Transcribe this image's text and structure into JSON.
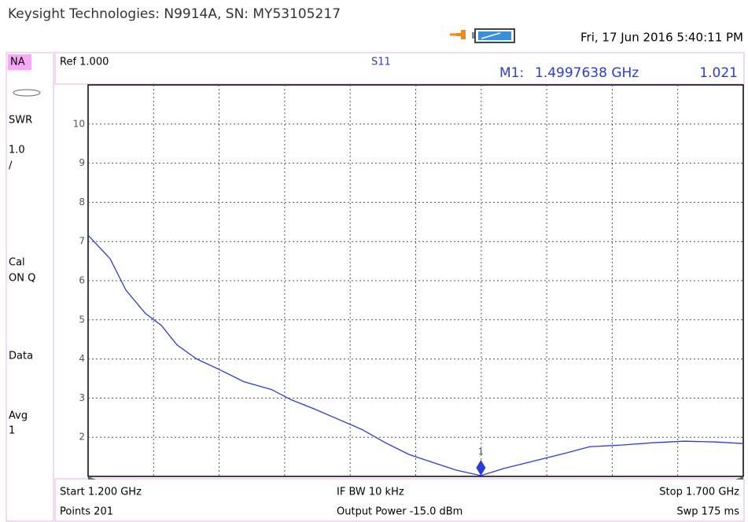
{
  "header": {
    "title": "Keysight Technologies: N9914A, SN: MY53105217",
    "datetime": "Fri, 17 Jun 2016 5:40:11 PM",
    "mode": "NA",
    "reference": "Ref 1.000",
    "measurement": "S11"
  },
  "side_panel": {
    "format": "SWR",
    "scale": "1.0",
    "scale_unit": "/",
    "cal_label": "Cal",
    "cal_state": "ON Q",
    "data": "Data",
    "avg_label": "Avg",
    "avg_value": "1"
  },
  "footer": {
    "start": "Start 1.200 GHz",
    "if_bw": "IF BW 10 kHz",
    "stop": "Stop 1.700 GHz",
    "points": "Points 201",
    "output_power": "Output Power -15.0 dBm",
    "sweep": "Swp 175 ms"
  },
  "chart_data": {
    "type": "line",
    "x": [
      1.2,
      1.2168,
      1.2288,
      1.2438,
      1.2558,
      1.2678,
      1.2828,
      1.3008,
      1.3188,
      1.3399,
      1.3549,
      1.3729,
      1.3909,
      1.4089,
      1.4269,
      1.4449,
      1.4629,
      1.4809,
      1.4998,
      1.517,
      1.5409,
      1.565,
      1.583,
      1.6069,
      1.6309,
      1.655,
      1.6789,
      1.7
    ],
    "series": [
      {
        "color": "#2a3cd6",
        "values": [
          7.16,
          6.56,
          5.76,
          5.16,
          4.86,
          4.36,
          4.0,
          3.72,
          3.42,
          3.22,
          2.96,
          2.72,
          2.46,
          2.2,
          1.86,
          1.56,
          1.36,
          1.16,
          1.021,
          1.2,
          1.4,
          1.6,
          1.76,
          1.8,
          1.86,
          1.9,
          1.88,
          1.84
        ]
      }
    ],
    "xlim": [
      1.2,
      1.7
    ],
    "ylim": [
      1,
      11
    ],
    "yticks": [
      2,
      3,
      4,
      5,
      6,
      7,
      8,
      9,
      10
    ],
    "grid": true,
    "markers": [
      {
        "name": "1",
        "x": 1.4997638,
        "y": 1.021,
        "readout_name": "M1:",
        "x_label": "1.4997638 GHz",
        "y_label": "1.021"
      }
    ]
  }
}
